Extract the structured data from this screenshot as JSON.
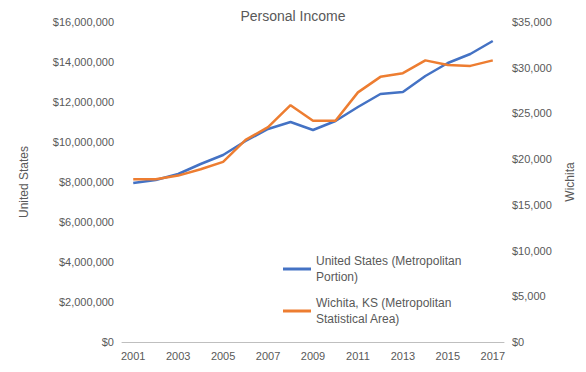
{
  "chart_data": {
    "type": "line",
    "title": "Personal Income",
    "categories": [
      "2001",
      null,
      "2003",
      null,
      "2005",
      null,
      "2007",
      null,
      "2009",
      null,
      "2011",
      null,
      "2013",
      null,
      "2015",
      null,
      "2017"
    ],
    "series": [
      {
        "name": "United States (Metropolitan Portion)",
        "color": "#4472c4",
        "axis": "y",
        "values": [
          7950000,
          8100000,
          8400000,
          8900000,
          9350000,
          10050000,
          10650000,
          11000000,
          10600000,
          11050000,
          11750000,
          12400000,
          12500000,
          13300000,
          13950000,
          14400000,
          15050000
        ]
      },
      {
        "name": "Wichita, KS (Metropolitan Statistical Area)",
        "color": "#ed7d31",
        "axis": "y2",
        "values": [
          17800,
          17800,
          18200,
          18900,
          19700,
          22100,
          23500,
          25900,
          24200,
          24200,
          27300,
          29000,
          29400,
          30800,
          30300,
          30200,
          30800
        ]
      }
    ],
    "ylabel": "United States",
    "y2label": "Wichita",
    "ylim": [
      0,
      16000000
    ],
    "yticks": [
      {
        "value": 0,
        "label": "$0"
      },
      {
        "value": 2000000,
        "label": "$2,000,000"
      },
      {
        "value": 4000000,
        "label": "$4,000,000"
      },
      {
        "value": 6000000,
        "label": "$6,000,000"
      },
      {
        "value": 8000000,
        "label": "$8,000,000"
      },
      {
        "value": 10000000,
        "label": "$10,000,000"
      },
      {
        "value": 12000000,
        "label": "$12,000,000"
      },
      {
        "value": 14000000,
        "label": "$14,000,000"
      },
      {
        "value": 16000000,
        "label": "$16,000,000"
      }
    ],
    "y2lim": [
      0,
      35000
    ],
    "y2ticks": [
      {
        "value": 0,
        "label": "$0"
      },
      {
        "value": 5000,
        "label": "$5,000"
      },
      {
        "value": 10000,
        "label": "$10,000"
      },
      {
        "value": 15000,
        "label": "$15,000"
      },
      {
        "value": 20000,
        "label": "$20,000"
      },
      {
        "value": 25000,
        "label": "$25,000"
      },
      {
        "value": 30000,
        "label": "$30,000"
      },
      {
        "value": 35000,
        "label": "$35,000"
      }
    ],
    "grid": false,
    "legend": "lower right"
  }
}
